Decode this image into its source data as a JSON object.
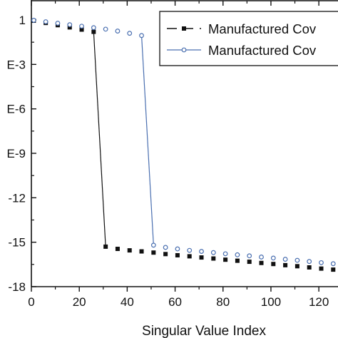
{
  "chart_data": {
    "type": "scatter",
    "title": "",
    "xlabel": "Singular Value Index",
    "ylabel": "",
    "xlim": [
      0,
      128
    ],
    "ylim": [
      -18,
      1.5
    ],
    "y_scale": "log10",
    "x_ticks": [
      "0",
      "20",
      "40",
      "60",
      "80",
      "100",
      "120"
    ],
    "x_tick_values": [
      0,
      20,
      40,
      60,
      80,
      100,
      120
    ],
    "y_ticks": [
      "1",
      "E-3",
      "E-6",
      "E-9",
      "-12",
      "-15",
      "-18"
    ],
    "y_tick_values": [
      0,
      -3,
      -6,
      -9,
      -12,
      -15,
      -18
    ],
    "grid": false,
    "legend_position": "top-right",
    "series": [
      {
        "name": "Manufactured Cov",
        "marker": "filled-square",
        "line": "dashed",
        "color": "#111111",
        "x": [
          1,
          6,
          11,
          16,
          21,
          26,
          31,
          36,
          41,
          46,
          51,
          56,
          61,
          66,
          71,
          76,
          81,
          86,
          91,
          96,
          101,
          106,
          111,
          116,
          121,
          126
        ],
        "y": [
          -0.05,
          -0.2,
          -0.35,
          -0.5,
          -0.65,
          -0.8,
          -15.3,
          -15.45,
          -15.55,
          -15.62,
          -15.7,
          -15.8,
          -15.88,
          -15.95,
          -16.03,
          -16.1,
          -16.18,
          -16.25,
          -16.32,
          -16.4,
          -16.47,
          -16.55,
          -16.62,
          -16.7,
          -16.78,
          -16.85
        ]
      },
      {
        "name": "Manufactured Cov",
        "marker": "open-circle",
        "line": "solid",
        "color": "#4a6fb0",
        "x": [
          1,
          6,
          11,
          16,
          21,
          26,
          31,
          36,
          41,
          46,
          51,
          56,
          61,
          66,
          71,
          76,
          81,
          86,
          91,
          96,
          101,
          106,
          111,
          116,
          121,
          126
        ],
        "y": [
          -0.02,
          -0.12,
          -0.22,
          -0.32,
          -0.42,
          -0.52,
          -0.62,
          -0.75,
          -0.9,
          -1.05,
          -15.2,
          -15.35,
          -15.45,
          -15.55,
          -15.62,
          -15.7,
          -15.78,
          -15.85,
          -15.92,
          -16.0,
          -16.07,
          -16.15,
          -16.22,
          -16.3,
          -16.38,
          -16.45
        ]
      }
    ],
    "legend": {
      "entries": [
        "Manufactured Cov",
        "Manufactured Cov"
      ]
    }
  }
}
